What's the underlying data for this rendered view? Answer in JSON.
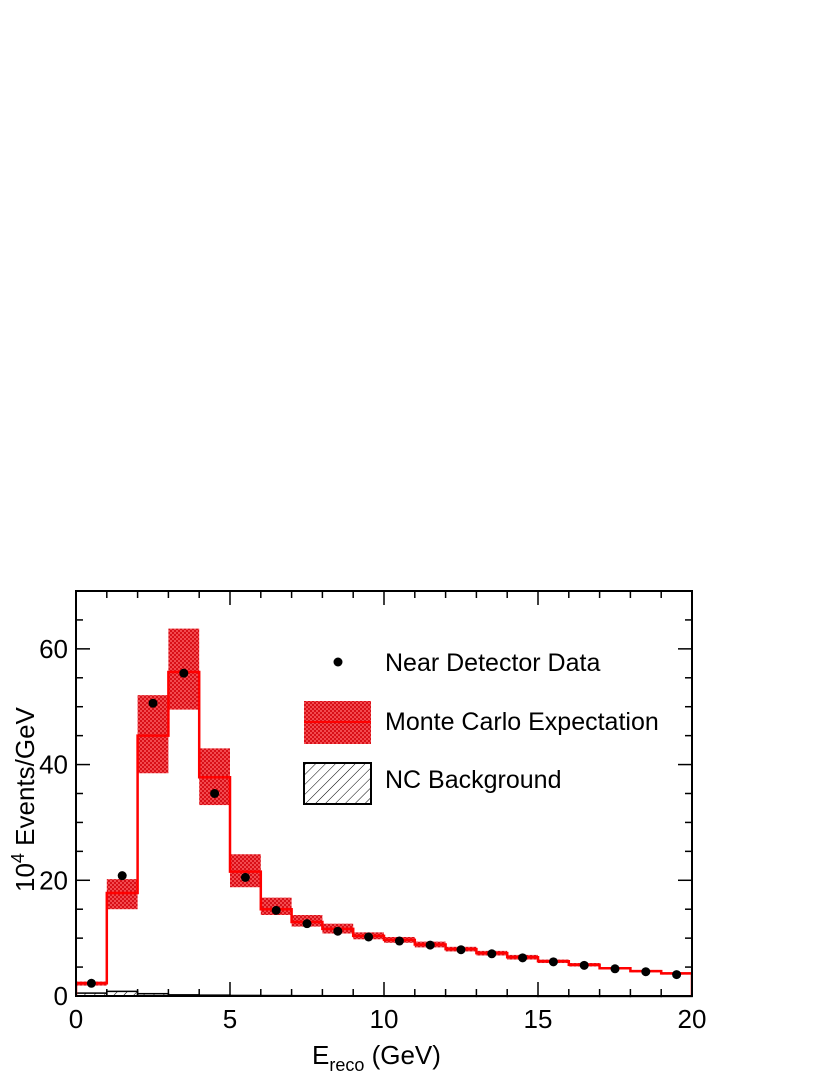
{
  "chart_data": {
    "type": "bar",
    "xlabel_main": "E",
    "xlabel_sub": "reco",
    "xlabel_unit": " (GeV)",
    "ylabel_base": "10",
    "ylabel_exp": "4",
    "ylabel_rest": " Events/GeV",
    "xlim": [
      0,
      20
    ],
    "ylim": [
      0,
      70
    ],
    "x_ticks": [
      0,
      5,
      10,
      15,
      20
    ],
    "x_tick_labels": [
      "0",
      "5",
      "10",
      "15",
      "20"
    ],
    "y_ticks": [
      0,
      20,
      40,
      60
    ],
    "y_tick_labels": [
      "0",
      "20",
      "40",
      "60"
    ],
    "bin_edges": [
      0,
      1,
      2,
      3,
      4,
      5,
      6,
      7,
      8,
      9,
      10,
      11,
      12,
      13,
      14,
      15,
      16,
      17,
      18,
      19,
      20
    ],
    "legend": {
      "data": "Near Detector Data",
      "mc": "Monte Carlo Expectation",
      "nc": "NC Background"
    },
    "colors": {
      "mc_band": "#e8141c",
      "mc_line": "#ff0000",
      "data": "#000000"
    },
    "series": [
      {
        "name": "Near Detector Data",
        "kind": "points",
        "x": [
          0.5,
          1.5,
          2.5,
          3.5,
          4.5,
          5.5,
          6.5,
          7.5,
          8.5,
          9.5,
          10.5,
          11.5,
          12.5,
          13.5,
          14.5,
          15.5,
          16.5,
          17.5,
          18.5,
          19.5
        ],
        "values": [
          2.2,
          20.8,
          50.6,
          55.8,
          35.0,
          20.5,
          14.8,
          12.5,
          11.2,
          10.2,
          9.5,
          8.8,
          8.0,
          7.3,
          6.6,
          5.9,
          5.3,
          4.7,
          4.2,
          3.7
        ]
      },
      {
        "name": "Monte Carlo Expectation",
        "kind": "histogram-band",
        "values": [
          2.2,
          17.8,
          45.0,
          56.0,
          37.8,
          21.5,
          15.0,
          12.8,
          11.6,
          10.4,
          9.7,
          8.9,
          8.1,
          7.4,
          6.7,
          6.0,
          5.4,
          4.8,
          4.3,
          3.9
        ],
        "band_low": [
          1.8,
          15.0,
          38.5,
          49.5,
          33.0,
          18.8,
          14.0,
          12.0,
          10.8,
          9.8,
          9.2,
          8.4,
          7.7,
          7.0,
          6.3,
          5.7,
          5.1,
          4.6,
          4.1,
          3.7
        ],
        "band_high": [
          2.5,
          20.2,
          52.0,
          63.5,
          42.8,
          24.5,
          17.0,
          14.0,
          12.5,
          11.0,
          10.2,
          9.4,
          8.5,
          7.8,
          7.1,
          6.3,
          5.7,
          5.0,
          4.5,
          4.1
        ]
      },
      {
        "name": "NC Background",
        "kind": "histogram-hatched",
        "values": [
          0.5,
          0.8,
          0.4,
          0.2,
          0.15,
          0.1,
          0.08,
          0.06,
          0.05,
          0.04,
          0.03,
          0.03,
          0.02,
          0.02,
          0.02,
          0.01,
          0.01,
          0.01,
          0.01,
          0.01
        ]
      }
    ]
  }
}
